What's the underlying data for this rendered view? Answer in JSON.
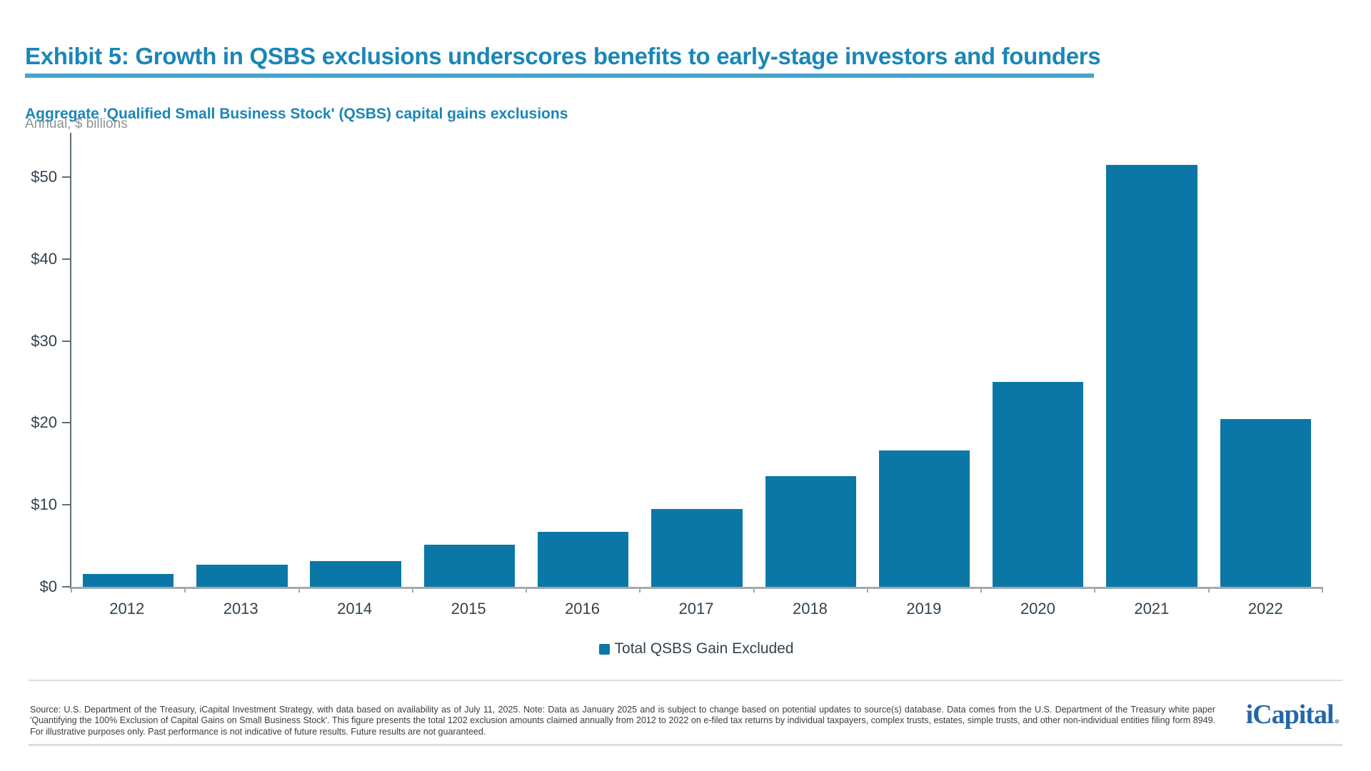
{
  "page": {
    "title": "Exhibit 5: Growth in QSBS exclusions underscores benefits to early-stage investors and founders",
    "chart_title": "Aggregate 'Qualified Small Business Stock' (QSBS) capital gains exclusions",
    "units_label": "Annual, $ billions",
    "footnote": "Source: U.S. Department of the Treasury, iCapital Investment Strategy, with data based on availability as of July 11, 2025. Note: Data as January 2025 and is subject to change based on potential updates to source(s) database. Data comes from the U.S. Department of the Treasury white paper 'Quantifying the 100% Exclusion of Capital Gains on Small Business Stock'. This figure presents the total 1202 exclusion amounts claimed annually from 2012 to 2022 on e-filed tax returns by individual taxpayers, complex trusts, estates, simple trusts, and other non-individual entities filing form 8949. For illustrative purposes only. Past performance is not indicative of future results. Future results are not guaranteed.",
    "logo_text": "iCapital",
    "logo_period": "."
  },
  "colors": {
    "accent": "#1B86B6",
    "underline": "#46A4CD",
    "bar": "#0B77A7",
    "axis_line": "#5F6E78",
    "baseline": "#A3A9AD",
    "tick_label": "#33424E",
    "muted_label": "#8C9296",
    "footnote_text": "#3C3C3C",
    "divider": "#DDDDDD",
    "logo_blue": "#2566A8",
    "logo_dot": "#97A7BE"
  },
  "chart_data": {
    "type": "bar",
    "title": "Aggregate 'Qualified Small Business Stock' (QSBS) capital gains exclusions",
    "subtitle": "Annual, $ billions",
    "categories": [
      "2012",
      "2013",
      "2014",
      "2015",
      "2016",
      "2017",
      "2018",
      "2019",
      "2020",
      "2021",
      "2022"
    ],
    "series": [
      {
        "name": "Total QSBS Gain Excluded",
        "values": [
          1.6,
          2.7,
          3.1,
          5.1,
          6.7,
          9.5,
          13.5,
          16.6,
          25.0,
          51.5,
          20.5
        ]
      }
    ],
    "xlabel": "",
    "ylabel": "$ billions",
    "ylim": [
      0,
      55.4
    ],
    "yticks": [
      0,
      10,
      20,
      30,
      40,
      50
    ],
    "ytick_labels": [
      "$0",
      "$10",
      "$20",
      "$30",
      "$40",
      "$50"
    ],
    "grid": false,
    "legend_position": "bottom-center"
  }
}
